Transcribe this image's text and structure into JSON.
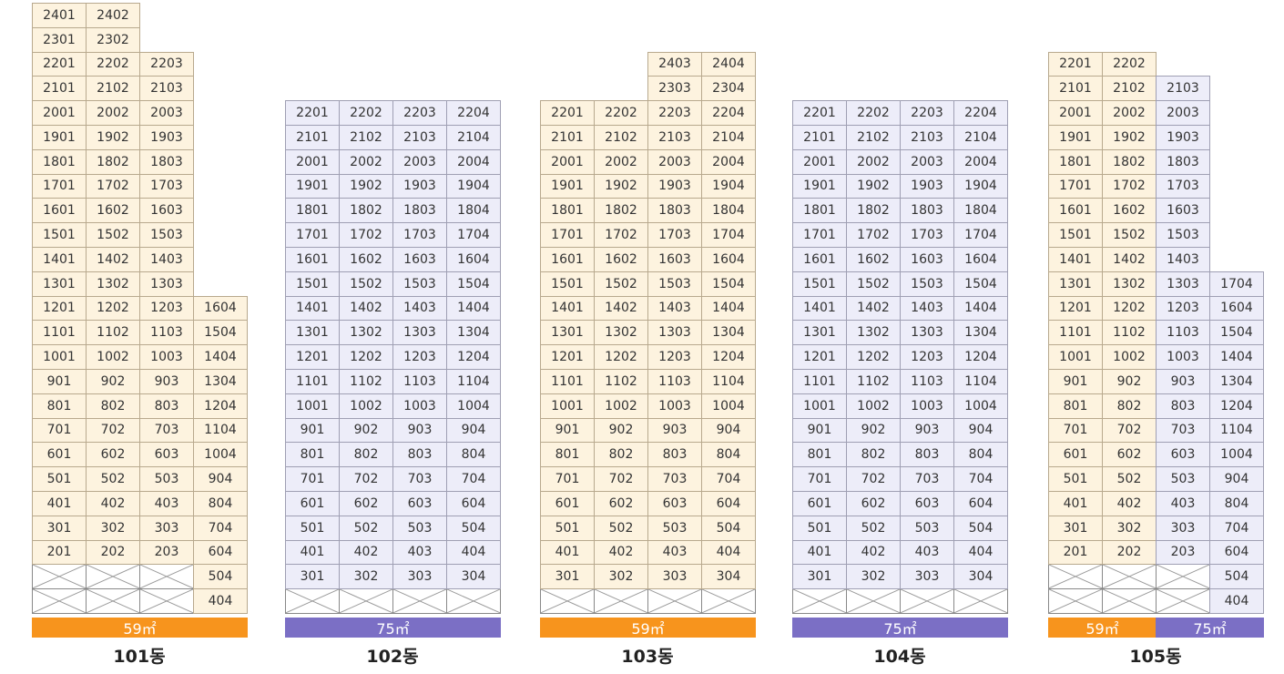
{
  "colors": {
    "area59": "#f7941d",
    "area75": "#7b6fc5",
    "cell59": "#fdf3df",
    "cell75": "#ededf9"
  },
  "area_labels": {
    "a59": "59㎡",
    "a75": "75㎡"
  },
  "buildings": [
    {
      "name": "101동",
      "columns": [
        {
          "type": "59",
          "top": 24,
          "empty": 2
        },
        {
          "type": "59",
          "top": 24,
          "empty": 2
        },
        {
          "type": "59",
          "top": 22,
          "empty": 2
        },
        {
          "type": "59",
          "top": 16,
          "empty": 0
        }
      ],
      "bars": [
        {
          "type": "59",
          "label": "59㎡",
          "from": 0,
          "span": 4
        }
      ]
    },
    {
      "name": "102동",
      "columns": [
        {
          "type": "75",
          "top": 22,
          "empty": 1
        },
        {
          "type": "75",
          "top": 22,
          "empty": 1
        },
        {
          "type": "75",
          "top": 22,
          "empty": 1
        },
        {
          "type": "75",
          "top": 22,
          "empty": 1
        }
      ],
      "bars": [
        {
          "type": "75",
          "label": "75㎡",
          "from": 0,
          "span": 4
        }
      ]
    },
    {
      "name": "103동",
      "columns": [
        {
          "type": "59",
          "top": 22,
          "empty": 1
        },
        {
          "type": "59",
          "top": 22,
          "empty": 1
        },
        {
          "type": "59",
          "top": 24,
          "empty": 1
        },
        {
          "type": "59",
          "top": 24,
          "empty": 1
        }
      ],
      "bars": [
        {
          "type": "59",
          "label": "59㎡",
          "from": 0,
          "span": 4
        }
      ]
    },
    {
      "name": "104동",
      "columns": [
        {
          "type": "75",
          "top": 22,
          "empty": 1
        },
        {
          "type": "75",
          "top": 22,
          "empty": 1
        },
        {
          "type": "75",
          "top": 22,
          "empty": 1
        },
        {
          "type": "75",
          "top": 22,
          "empty": 1
        }
      ],
      "bars": [
        {
          "type": "75",
          "label": "75㎡",
          "from": 0,
          "span": 4
        }
      ]
    },
    {
      "name": "105동",
      "columns": [
        {
          "type": "59",
          "top": 22,
          "empty": 2
        },
        {
          "type": "59",
          "top": 22,
          "empty": 2
        },
        {
          "type": "75",
          "top": 21,
          "empty": 2
        },
        {
          "type": "75",
          "top": 17,
          "empty": 0
        }
      ],
      "bars": [
        {
          "type": "59",
          "label": "59㎡",
          "from": 0,
          "span": 2
        },
        {
          "type": "75",
          "label": "75㎡",
          "from": 2,
          "span": 2
        }
      ]
    }
  ]
}
